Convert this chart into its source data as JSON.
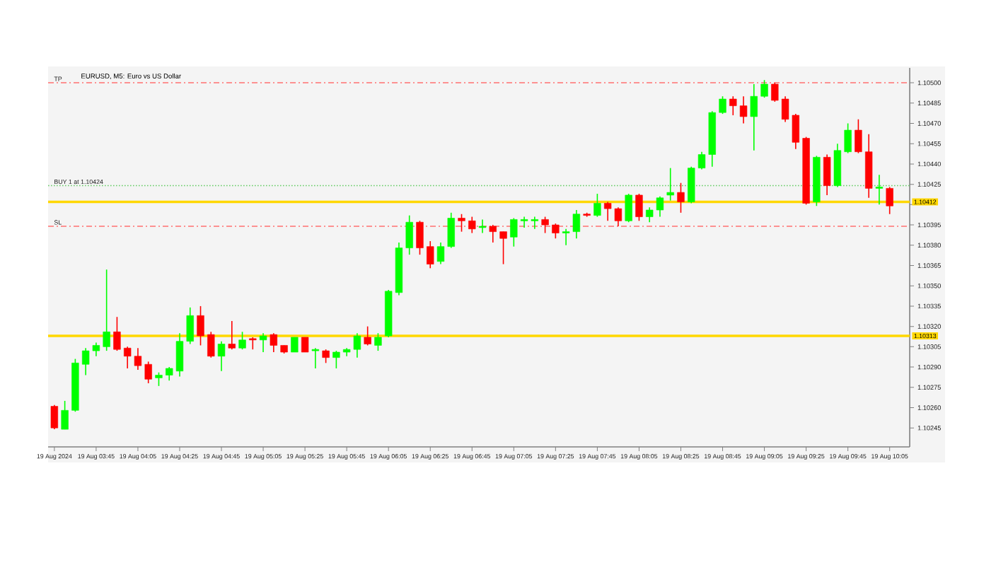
{
  "chart_data": {
    "type": "candlestick",
    "title": "EURUSD, M5: Euro vs US Dollar",
    "categories": [
      "19 Aug 2024",
      null,
      null,
      null,
      "19 Aug 03:45",
      null,
      null,
      null,
      "19 Aug 04:05",
      null,
      null,
      null,
      "19 Aug 04:25",
      null,
      null,
      null,
      "19 Aug 04:45",
      null,
      null,
      null,
      "19 Aug 05:05",
      null,
      null,
      null,
      "19 Aug 05:25",
      null,
      null,
      null,
      "19 Aug 05:45",
      null,
      null,
      null,
      "19 Aug 06:05",
      null,
      null,
      null,
      "19 Aug 06:25",
      null,
      null,
      null,
      "19 Aug 06:45",
      null,
      null,
      null,
      "19 Aug 07:05",
      null,
      null,
      null,
      "19 Aug 07:25",
      null,
      null,
      null,
      "19 Aug 07:45",
      null,
      null,
      null,
      "19 Aug 08:05",
      null,
      null,
      null,
      "19 Aug 08:25",
      null,
      null,
      null,
      "19 Aug 08:45",
      null,
      null,
      null,
      "19 Aug 09:05",
      null,
      null,
      null,
      "19 Aug 09:25",
      null,
      null,
      null,
      "19 Aug 09:45",
      null,
      null,
      null,
      "19 Aug 10:05"
    ],
    "ohlc": [
      [
        1.10261,
        1.10262,
        1.10244,
        1.10245
      ],
      [
        1.10244,
        1.10265,
        1.10244,
        1.10258
      ],
      [
        1.10258,
        1.10296,
        1.10257,
        1.10293
      ],
      [
        1.10292,
        1.10304,
        1.10284,
        1.10302
      ],
      [
        1.10302,
        1.10308,
        1.10298,
        1.10306
      ],
      [
        1.10305,
        1.10362,
        1.10302,
        1.10316
      ],
      [
        1.10316,
        1.10327,
        1.10302,
        1.10303
      ],
      [
        1.10304,
        1.10305,
        1.10289,
        1.10298
      ],
      [
        1.10298,
        1.10304,
        1.10288,
        1.10291
      ],
      [
        1.10292,
        1.10294,
        1.10278,
        1.10281
      ],
      [
        1.10282,
        1.10286,
        1.10276,
        1.10284
      ],
      [
        1.10284,
        1.1029,
        1.1028,
        1.10289
      ],
      [
        1.10287,
        1.10315,
        1.10283,
        1.10309
      ],
      [
        1.10309,
        1.10334,
        1.10307,
        1.10328
      ],
      [
        1.10328,
        1.10335,
        1.10306,
        1.10313
      ],
      [
        1.10314,
        1.10316,
        1.10297,
        1.10298
      ],
      [
        1.10298,
        1.10309,
        1.10287,
        1.10307
      ],
      [
        1.10307,
        1.10324,
        1.10303,
        1.10304
      ],
      [
        1.10304,
        1.10316,
        1.10303,
        1.1031
      ],
      [
        1.10311,
        1.10312,
        1.10303,
        1.1031
      ],
      [
        1.1031,
        1.10315,
        1.10301,
        1.10313
      ],
      [
        1.10314,
        1.10315,
        1.10301,
        1.10306
      ],
      [
        1.10306,
        1.10306,
        1.103,
        1.10301
      ],
      [
        1.10301,
        1.10312,
        1.10301,
        1.10312
      ],
      [
        1.10312,
        1.10312,
        1.10301,
        1.10301
      ],
      [
        1.10302,
        1.10304,
        1.10289,
        1.10303
      ],
      [
        1.10302,
        1.10303,
        1.10293,
        1.10297
      ],
      [
        1.10297,
        1.10302,
        1.10289,
        1.10301
      ],
      [
        1.10301,
        1.10304,
        1.10298,
        1.10303
      ],
      [
        1.10303,
        1.10315,
        1.10297,
        1.10313
      ],
      [
        1.10312,
        1.1032,
        1.10306,
        1.10307
      ],
      [
        1.10306,
        1.10315,
        1.10302,
        1.10312
      ],
      [
        1.10313,
        1.10347,
        1.10312,
        1.10346
      ],
      [
        1.10345,
        1.10382,
        1.10343,
        1.10378
      ],
      [
        1.10378,
        1.10402,
        1.10373,
        1.10397
      ],
      [
        1.10397,
        1.10398,
        1.10373,
        1.10378
      ],
      [
        1.10379,
        1.10383,
        1.10363,
        1.10366
      ],
      [
        1.10368,
        1.10382,
        1.10366,
        1.10379
      ],
      [
        1.10379,
        1.10404,
        1.10378,
        1.104
      ],
      [
        1.104,
        1.10403,
        1.1039,
        1.10398
      ],
      [
        1.10398,
        1.10401,
        1.10389,
        1.10392
      ],
      [
        1.10393,
        1.10399,
        1.10389,
        1.10394
      ],
      [
        1.10394,
        1.10395,
        1.10382,
        1.1039
      ],
      [
        1.1039,
        1.1039,
        1.10366,
        1.10385
      ],
      [
        1.10386,
        1.104,
        1.10379,
        1.10399
      ],
      [
        1.10398,
        1.10401,
        1.10393,
        1.10399
      ],
      [
        1.10398,
        1.10401,
        1.10392,
        1.10399
      ],
      [
        1.10399,
        1.10401,
        1.10389,
        1.10395
      ],
      [
        1.10395,
        1.10396,
        1.10385,
        1.10389
      ],
      [
        1.10389,
        1.10392,
        1.1038,
        1.1039
      ],
      [
        1.1039,
        1.10406,
        1.10385,
        1.10403
      ],
      [
        1.10403,
        1.10404,
        1.10401,
        1.10402
      ],
      [
        1.10402,
        1.10418,
        1.10401,
        1.10411
      ],
      [
        1.10411,
        1.10412,
        1.10398,
        1.10407
      ],
      [
        1.10407,
        1.10408,
        1.10394,
        1.10398
      ],
      [
        1.10398,
        1.10418,
        1.10397,
        1.10417
      ],
      [
        1.10417,
        1.10418,
        1.10398,
        1.10401
      ],
      [
        1.10401,
        1.10408,
        1.10397,
        1.10406
      ],
      [
        1.10406,
        1.10416,
        1.10401,
        1.10415
      ],
      [
        1.10417,
        1.10437,
        1.10413,
        1.10419
      ],
      [
        1.10419,
        1.10426,
        1.10404,
        1.10412
      ],
      [
        1.10412,
        1.10438,
        1.10411,
        1.10437
      ],
      [
        1.10437,
        1.10449,
        1.10436,
        1.10447
      ],
      [
        1.10447,
        1.10479,
        1.10438,
        1.10478
      ],
      [
        1.10478,
        1.1049,
        1.10477,
        1.10488
      ],
      [
        1.10488,
        1.1049,
        1.10476,
        1.10483
      ],
      [
        1.10483,
        1.1049,
        1.1047,
        1.10475
      ],
      [
        1.10475,
        1.10499,
        1.1045,
        1.1049
      ],
      [
        1.1049,
        1.10502,
        1.10489,
        1.10499
      ],
      [
        1.10499,
        1.105,
        1.10486,
        1.10487
      ],
      [
        1.10488,
        1.1049,
        1.10471,
        1.10473
      ],
      [
        1.10476,
        1.10477,
        1.10451,
        1.10456
      ],
      [
        1.10459,
        1.1046,
        1.1041,
        1.10411
      ],
      [
        1.10412,
        1.10446,
        1.10409,
        1.10445
      ],
      [
        1.10445,
        1.10447,
        1.10417,
        1.10424
      ],
      [
        1.10424,
        1.10455,
        1.10423,
        1.1045
      ],
      [
        1.10449,
        1.1047,
        1.10448,
        1.10465
      ],
      [
        1.10465,
        1.10473,
        1.10448,
        1.10449
      ],
      [
        1.10449,
        1.10462,
        1.10415,
        1.10422
      ],
      [
        1.10422,
        1.10432,
        1.1041,
        1.10423
      ],
      [
        1.10422,
        1.10423,
        1.10403,
        1.10409
      ]
    ],
    "colors": [
      "#ff0000",
      "#00ff00",
      "#00ff00",
      "#00ff00",
      "#00ff00",
      "#00ff00",
      "#ff0000",
      "#ff0000",
      "#ff0000",
      "#ff0000",
      "#00ff00",
      "#00ff00",
      "#00ff00",
      "#00ff00",
      "#ff0000",
      "#ff0000",
      "#00ff00",
      "#ff0000",
      "#00ff00",
      "#ff0000",
      "#00ff00",
      "#ff0000",
      "#ff0000",
      "#00ff00",
      "#ff0000",
      "#00ff00",
      "#ff0000",
      "#00ff00",
      "#00ff00",
      "#00ff00",
      "#ff0000",
      "#00ff00",
      "#00ff00",
      "#00ff00",
      "#00ff00",
      "#ff0000",
      "#ff0000",
      "#00ff00",
      "#00ff00",
      "#ff0000",
      "#ff0000",
      "#00ff00",
      "#ff0000",
      "#ff0000",
      "#00ff00",
      "#00ff00",
      "#00ff00",
      "#ff0000",
      "#ff0000",
      "#00ff00",
      "#00ff00",
      "#ff0000",
      "#00ff00",
      "#ff0000",
      "#ff0000",
      "#00ff00",
      "#ff0000",
      "#00ff00",
      "#00ff00",
      "#00ff00",
      "#ff0000",
      "#00ff00",
      "#00ff00",
      "#00ff00",
      "#00ff00",
      "#ff0000",
      "#ff0000",
      "#00ff00",
      "#00ff00",
      "#ff0000",
      "#ff0000",
      "#ff0000",
      "#ff0000",
      "#00ff00",
      "#ff0000",
      "#00ff00",
      "#00ff00",
      "#ff0000",
      "#ff0000",
      "#00ff00",
      "#ff0000"
    ],
    "ylim": [
      1.10231,
      1.10511
    ],
    "yticks": [
      {
        "value": 1.10245,
        "label": "1.10245"
      },
      {
        "value": 1.1026,
        "label": "1.10260"
      },
      {
        "value": 1.10275,
        "label": "1.10275"
      },
      {
        "value": 1.1029,
        "label": "1.10290"
      },
      {
        "value": 1.10305,
        "label": "1.10305"
      },
      {
        "value": 1.1032,
        "label": "1.10320"
      },
      {
        "value": 1.10335,
        "label": "1.10335"
      },
      {
        "value": 1.1035,
        "label": "1.10350"
      },
      {
        "value": 1.10365,
        "label": "1.10365"
      },
      {
        "value": 1.1038,
        "label": "1.10380"
      },
      {
        "value": 1.10395,
        "label": "1.10395"
      },
      {
        "value": 1.1041,
        "label": null
      },
      {
        "value": 1.10425,
        "label": "1.10425"
      },
      {
        "value": 1.1044,
        "label": "1.10440"
      },
      {
        "value": 1.10455,
        "label": "1.10455"
      },
      {
        "value": 1.1047,
        "label": "1.10470"
      },
      {
        "value": 1.10485,
        "label": "1.10485"
      },
      {
        "value": 1.105,
        "label": "1.10500"
      }
    ],
    "ref_lines": [
      {
        "axis": "y",
        "value": 1.105,
        "label": "TP",
        "color": "#ff7070",
        "line_style": "dashdot"
      },
      {
        "axis": "y",
        "value": 1.10424,
        "label": "BUY 1 at 1.10424",
        "color": "#66cc66",
        "line_style": "dotted"
      },
      {
        "axis": "y",
        "value": 1.10412,
        "label": "1.10412",
        "color": "#ffd700",
        "line_style": "solid"
      },
      {
        "axis": "y",
        "value": 1.10394,
        "label": "SL",
        "color": "#ff7070",
        "line_style": "dashdot"
      },
      {
        "axis": "y",
        "value": 1.10313,
        "label": "1.10313",
        "color": "#ffd700",
        "line_style": "solid"
      }
    ]
  }
}
